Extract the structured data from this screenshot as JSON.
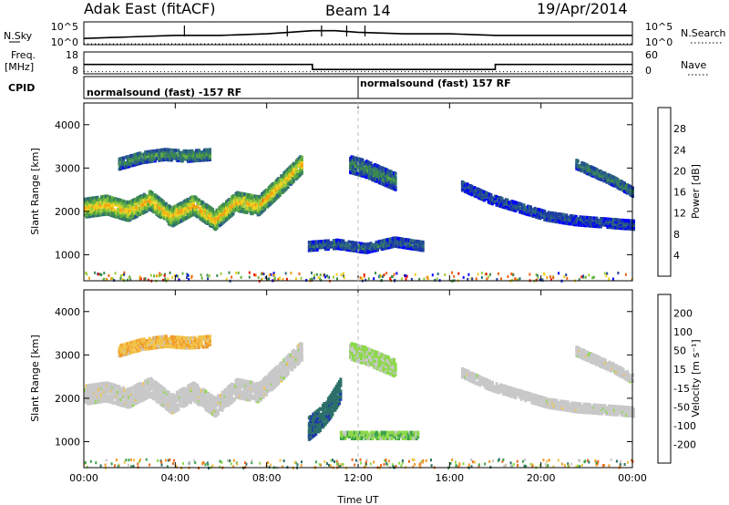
{
  "header": {
    "station": "Adak East (fitACF)",
    "beam": "Beam 14",
    "date": "19/Apr/2014"
  },
  "side_labels": {
    "nsky": "N.Sky",
    "nsearch": "N.Search",
    "freq_line1": "Freq.",
    "freq_line2": "[MHz]",
    "nave": "Nave",
    "cpid": "CPID"
  },
  "cpid_blocks": [
    "normalsound (fast) -157 RF",
    "normalsound (fast) 157 RF"
  ],
  "colors": {
    "frame": "#000000",
    "ground_scatter": "#c8c8c8",
    "power_scale": [
      "#0000ff",
      "#1f3f9f",
      "#2e6b7a",
      "#3c8a4e",
      "#64b040",
      "#9ccc3c",
      "#f0d020",
      "#f3a010",
      "#ef6010",
      "#e81e0a",
      "#ff0000"
    ],
    "velocity_scale": [
      "#1d2fb5",
      "#2c6f6a",
      "#3aa04a",
      "#8cd84a",
      "#c8c8c8",
      "#f2c24a",
      "#f09a2a",
      "#ef6a1c",
      "#e43010",
      "#ff0000"
    ]
  },
  "chart_data": [
    {
      "type": "line",
      "name": "noise-panel",
      "x_unit": "hour UT",
      "xlim": [
        0,
        24
      ],
      "series": [
        {
          "name": "N.Sky",
          "x": [
            0,
            2,
            4,
            6,
            8,
            9,
            10,
            11,
            12,
            14,
            16,
            18,
            20,
            22,
            24
          ],
          "y": [
            10.4,
            10.5,
            10.6,
            10.6,
            10.7,
            10.8,
            10.9,
            10.9,
            10.8,
            10.7,
            10.7,
            10.6,
            10.6,
            10.6,
            10.6
          ]
        },
        {
          "name": "N.Search",
          "x": [
            0,
            24
          ],
          "y": [
            10.0,
            10.0
          ]
        }
      ],
      "y_ticks_left": [
        "10^5",
        "10^0"
      ],
      "y_ticks_right": [
        "10^5",
        "10^0"
      ]
    },
    {
      "type": "line",
      "name": "frequency-panel",
      "xlim": [
        0,
        24
      ],
      "series": [
        {
          "name": "Freq.",
          "x": [
            0,
            10,
            10,
            18,
            18,
            24
          ],
          "y": [
            12.3,
            12.3,
            10.0,
            10.0,
            12.3,
            12.3
          ]
        },
        {
          "name": "Nave",
          "x": [
            0,
            24
          ],
          "y": [
            9.0,
            9.0
          ]
        }
      ],
      "y_ticks_left": [
        "18",
        "8"
      ],
      "y_ticks_right": [
        "60",
        "0"
      ]
    },
    {
      "type": "heatmap",
      "name": "power-panel",
      "ylabel": "Slant Range [km]",
      "xlim": [
        0,
        24
      ],
      "ylim": [
        400,
        4500
      ],
      "yticks": [
        "1000",
        "2000",
        "3000",
        "4000"
      ],
      "colorbar": {
        "label": "Power [dB]",
        "ticks": [
          "4",
          "8",
          "12",
          "16",
          "20",
          "24",
          "28"
        ],
        "range": [
          0,
          32
        ]
      },
      "regions": [
        {
          "x0": 0.0,
          "x1": 9.5,
          "center_km": [
            2080,
            2150,
            2000,
            2260,
            1870,
            2150,
            1800,
            2230,
            2130,
            2600,
            3100
          ],
          "thickness_km": 420,
          "power_db": 22
        },
        {
          "x0": 1.5,
          "x1": 5.5,
          "center_km": [
            3100,
            3250,
            3320,
            3280,
            3320
          ],
          "thickness_km": 250,
          "power_db": 12
        },
        {
          "x0": 9.8,
          "x1": 14.8,
          "center_km": [
            1200,
            1250,
            1150,
            1300,
            1200
          ],
          "thickness_km": 200,
          "power_db": 8
        },
        {
          "x0": 11.6,
          "x1": 13.6,
          "center_km": [
            3100,
            3000,
            2850,
            2700
          ],
          "thickness_km": 400,
          "power_db": 10
        },
        {
          "x0": 16.5,
          "x1": 24.0,
          "center_km": [
            2600,
            2300,
            2100,
            1900,
            1800,
            1750,
            1700
          ],
          "thickness_km": 220,
          "power_db": 6
        },
        {
          "x0": 21.5,
          "x1": 24.0,
          "center_km": [
            3100,
            2900,
            2700,
            2450
          ],
          "thickness_km": 220,
          "power_db": 10
        }
      ]
    },
    {
      "type": "heatmap",
      "name": "velocity-panel",
      "ylabel": "Slant Range [km]",
      "xlabel": "Time UT",
      "xlim": [
        0,
        24
      ],
      "ylim": [
        400,
        4500
      ],
      "xticks": [
        "00:00",
        "04:00",
        "08:00",
        "12:00",
        "16:00",
        "20:00",
        "00:00"
      ],
      "yticks": [
        "1000",
        "2000",
        "3000",
        "4000"
      ],
      "colorbar": {
        "label": "Velocity [m s⁻¹]",
        "ticks": [
          "200",
          "100",
          "50",
          "15",
          "-15",
          "-50",
          "-100",
          "-200"
        ],
        "range": [
          -250,
          250
        ]
      },
      "regions": [
        {
          "x0": 0.0,
          "x1": 9.5,
          "center_km": [
            2080,
            2150,
            2000,
            2260,
            1870,
            2150,
            1800,
            2230,
            2130,
            2600,
            3100
          ],
          "thickness_km": 420,
          "velocity": 0,
          "ground_scatter": true
        },
        {
          "x0": 1.5,
          "x1": 5.5,
          "center_km": [
            3100,
            3250,
            3320,
            3280,
            3320
          ],
          "thickness_km": 250,
          "velocity": -40
        },
        {
          "x0": 9.8,
          "x1": 11.2,
          "center_km": [
            1300,
            1500,
            1800,
            2200
          ],
          "thickness_km": 500,
          "velocity": 180
        },
        {
          "x0": 11.2,
          "x1": 14.6,
          "center_km": [
            1150,
            1150,
            1150
          ],
          "thickness_km": 160,
          "velocity": 40
        },
        {
          "x0": 11.6,
          "x1": 13.6,
          "center_km": [
            3100,
            3000,
            2850,
            2700
          ],
          "thickness_km": 400,
          "velocity": 20
        },
        {
          "x0": 16.5,
          "x1": 24.0,
          "center_km": [
            2600,
            2300,
            2100,
            1900,
            1800,
            1750,
            1700
          ],
          "thickness_km": 220,
          "velocity": 0,
          "ground_scatter": true
        },
        {
          "x0": 21.5,
          "x1": 24.0,
          "center_km": [
            3100,
            2900,
            2700,
            2450
          ],
          "thickness_km": 220,
          "velocity": 0,
          "ground_scatter": true
        }
      ]
    }
  ]
}
